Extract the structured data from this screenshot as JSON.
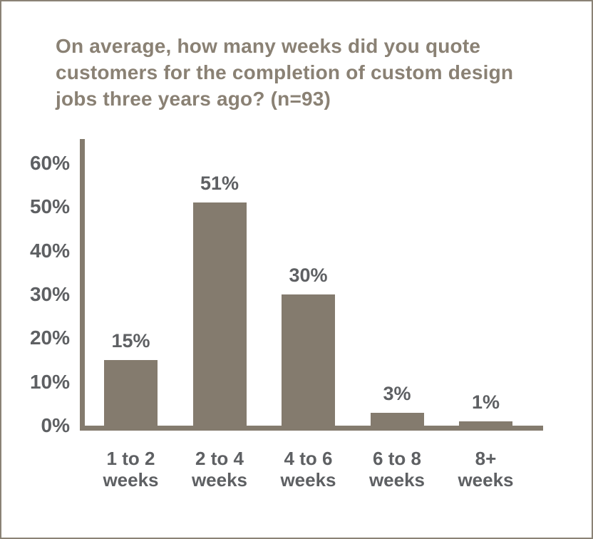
{
  "chart_data": {
    "type": "bar",
    "title": "On average, how many weeks did you quote customers for the completion of custom design jobs three years ago? (n=93)",
    "title_lines": [
      "On average, how many weeks did you quote",
      "customers for the completion of custom design",
      "jobs three years ago? (n=93)"
    ],
    "categories": [
      "1 to 2 weeks",
      "2 to 4 weeks",
      "4 to 6 weeks",
      "6 to 8 weeks",
      "8+ weeks"
    ],
    "category_lines": [
      [
        "1 to 2",
        "weeks"
      ],
      [
        "2 to 4",
        "weeks"
      ],
      [
        "4 to 6",
        "weeks"
      ],
      [
        "6 to 8",
        "weeks"
      ],
      [
        "8+",
        "weeks"
      ]
    ],
    "values": [
      15,
      51,
      30,
      3,
      1
    ],
    "data_labels": [
      "15%",
      "51%",
      "30%",
      "3%",
      "1%"
    ],
    "xlabel": "",
    "ylabel": "",
    "ylim": [
      0,
      60
    ],
    "y_tick_step": 10,
    "y_tick_labels": [
      "0%",
      "10%",
      "20%",
      "30%",
      "40%",
      "50%",
      "60%"
    ],
    "grid": false,
    "legend": false,
    "colors": {
      "bar": "#847b6e",
      "axis": "#847b6e",
      "title": "#8a8174",
      "tick_text": "#5e6063",
      "border": "#8a8275",
      "background": "#ffffff"
    }
  }
}
